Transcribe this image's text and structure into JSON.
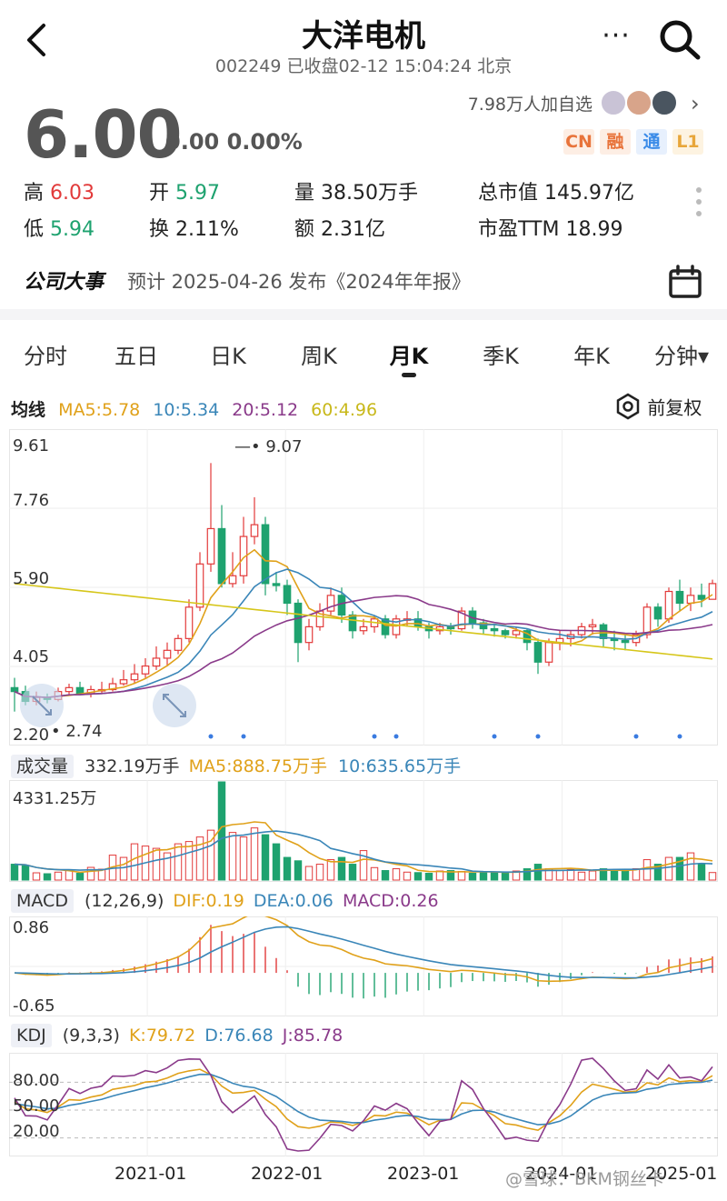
{
  "header": {
    "title": "大洋电机",
    "subtitle": "002249 已收盘02-12 15:04:24 北京"
  },
  "quote": {
    "price": "6.00",
    "change": "0.00 0.00%",
    "watchers": "7.98万人加自选",
    "badges": [
      {
        "label": "CN",
        "color": "#e8733a",
        "bg": "#fdeee4"
      },
      {
        "label": "融",
        "color": "#e8733a",
        "bg": "#fdeee4"
      },
      {
        "label": "通",
        "color": "#3a8be8",
        "bg": "#e7f0fd"
      },
      {
        "label": "L1",
        "color": "#e8a63a",
        "bg": "#fdf3e1"
      }
    ]
  },
  "stats": {
    "high_label": "高",
    "high": "6.03",
    "open_label": "开",
    "open": "5.97",
    "volume": "量 38.50万手",
    "mktcap": "总市值 145.97亿",
    "low_label": "低",
    "low": "5.94",
    "turnover": "换 2.11%",
    "amount": "额 2.31亿",
    "pe": "市盈TTM 18.99"
  },
  "event": {
    "tag": "公司大事",
    "text": "预计 2025-04-26 发布《2024年年报》"
  },
  "tabs": [
    "分时",
    "五日",
    "日K",
    "周K",
    "月K",
    "季K",
    "年K",
    "分钟▾"
  ],
  "active_tab": "月K",
  "ma_legend": {
    "label": "均线",
    "ma5": "MA5:5.78",
    "ma10": "10:5.34",
    "ma20": "20:5.12",
    "ma60": "60:4.96",
    "adjust": "前复权"
  },
  "price_axis": {
    "top": "9.61",
    "mid1": "7.76",
    "mid2": "5.90",
    "mid3": "4.05",
    "bottom": "2.20"
  },
  "annotations": {
    "max": "9.07",
    "min": "2.74"
  },
  "volume_legend": {
    "label": "成交量",
    "current": "332.19万手",
    "ma5": "MA5:888.75万手",
    "ma10": "10:635.65万手",
    "max": "4331.25万"
  },
  "macd_legend": {
    "label": "MACD",
    "params": "(12,26,9)",
    "dif": "DIF:0.19",
    "dea": "DEA:0.06",
    "macd": "MACD:0.26",
    "top": "0.86",
    "bottom": "-0.65"
  },
  "kdj_legend": {
    "label": "KDJ",
    "params": "(9,3,3)",
    "k": "K:79.72",
    "d": "D:76.68",
    "j": "J:85.78",
    "l80": "80.00",
    "l50": "50.00",
    "l20": "20.00"
  },
  "date_axis": [
    "2021-01",
    "2022-01",
    "2023-01",
    "2024-01",
    "2025-01"
  ],
  "watermark": "@雪球：BKM钢丝卡",
  "colors": {
    "up": "#e23a3a",
    "down": "#1ea26f",
    "ma5": "#e0a11a",
    "ma10": "#3a86b8",
    "ma20": "#8a3a8a",
    "ma60": "#d6c61a"
  },
  "chart_data": {
    "type": "candlestick",
    "period": "monthly",
    "ylim": [
      2.2,
      9.61
    ],
    "candles": [
      [
        3.35,
        3.25,
        3.6,
        2.74
      ],
      [
        3.25,
        3.0,
        3.4,
        2.9
      ],
      [
        3.0,
        3.1,
        3.25,
        2.9
      ],
      [
        3.1,
        3.05,
        3.2,
        2.95
      ],
      [
        3.05,
        3.25,
        3.35,
        3.0
      ],
      [
        3.25,
        3.35,
        3.45,
        3.15
      ],
      [
        3.35,
        3.2,
        3.5,
        3.15
      ],
      [
        3.2,
        3.3,
        3.4,
        3.1
      ],
      [
        3.3,
        3.3,
        3.5,
        3.2
      ],
      [
        3.3,
        3.45,
        3.6,
        3.25
      ],
      [
        3.45,
        3.55,
        3.8,
        3.4
      ],
      [
        3.55,
        3.7,
        3.95,
        3.45
      ],
      [
        3.7,
        3.9,
        4.1,
        3.6
      ],
      [
        3.9,
        4.1,
        4.4,
        3.8
      ],
      [
        4.1,
        4.3,
        4.5,
        3.9
      ],
      [
        4.3,
        4.6,
        4.7,
        4.2
      ],
      [
        4.6,
        5.4,
        5.6,
        4.5
      ],
      [
        5.4,
        6.5,
        6.8,
        5.3
      ],
      [
        6.5,
        7.4,
        9.07,
        6.3
      ],
      [
        7.4,
        6.0,
        8.0,
        5.9
      ],
      [
        6.0,
        6.2,
        6.8,
        5.9
      ],
      [
        6.2,
        7.2,
        7.7,
        6.0
      ],
      [
        7.2,
        7.5,
        8.2,
        7.0
      ],
      [
        7.5,
        6.0,
        7.7,
        5.7
      ],
      [
        6.0,
        5.95,
        6.3,
        5.8
      ],
      [
        5.95,
        5.5,
        6.1,
        5.2
      ],
      [
        5.5,
        4.5,
        5.6,
        4.0
      ],
      [
        4.5,
        4.9,
        5.1,
        4.3
      ],
      [
        4.9,
        5.3,
        5.5,
        4.8
      ],
      [
        5.3,
        5.7,
        5.9,
        5.2
      ],
      [
        5.7,
        5.2,
        5.9,
        5.0
      ],
      [
        5.2,
        4.8,
        5.3,
        4.6
      ],
      [
        4.8,
        4.9,
        5.1,
        4.7
      ],
      [
        4.9,
        5.1,
        5.2,
        4.75
      ],
      [
        5.1,
        4.7,
        5.2,
        4.6
      ],
      [
        4.7,
        5.1,
        5.2,
        4.6
      ],
      [
        5.1,
        5.1,
        5.3,
        4.9
      ],
      [
        5.1,
        4.9,
        5.3,
        4.8
      ],
      [
        4.9,
        4.8,
        5.0,
        4.6
      ],
      [
        4.8,
        4.9,
        5.0,
        4.7
      ],
      [
        4.9,
        4.85,
        5.0,
        4.7
      ],
      [
        4.85,
        5.3,
        5.4,
        4.8
      ],
      [
        5.3,
        5.0,
        5.4,
        4.85
      ],
      [
        5.0,
        4.85,
        5.1,
        4.7
      ],
      [
        4.85,
        4.8,
        4.95,
        4.65
      ],
      [
        4.8,
        4.7,
        4.85,
        4.6
      ],
      [
        4.7,
        4.8,
        4.9,
        4.6
      ],
      [
        4.8,
        4.5,
        4.85,
        4.3
      ],
      [
        4.5,
        4.0,
        4.6,
        3.7
      ],
      [
        4.0,
        4.5,
        4.6,
        3.9
      ],
      [
        4.5,
        4.6,
        4.8,
        4.3
      ],
      [
        4.6,
        4.7,
        4.8,
        4.4
      ],
      [
        4.7,
        4.9,
        5.0,
        4.6
      ],
      [
        4.9,
        4.95,
        5.1,
        4.7
      ],
      [
        4.95,
        4.6,
        5.0,
        4.4
      ],
      [
        4.6,
        4.55,
        4.8,
        4.3
      ],
      [
        4.55,
        4.5,
        4.7,
        4.3
      ],
      [
        4.5,
        4.7,
        4.8,
        4.4
      ],
      [
        4.7,
        5.4,
        5.5,
        4.6
      ],
      [
        5.4,
        5.1,
        5.5,
        4.9
      ],
      [
        5.1,
        5.8,
        5.9,
        5.0
      ],
      [
        5.8,
        5.5,
        6.1,
        5.3
      ],
      [
        5.5,
        5.7,
        5.9,
        5.3
      ],
      [
        5.7,
        5.6,
        6.0,
        5.4
      ],
      [
        5.6,
        6.0,
        6.1,
        5.7
      ]
    ],
    "volume_ylim": [
      0,
      4331.25
    ],
    "volumes": [
      700,
      650,
      320,
      280,
      350,
      460,
      300,
      560,
      480,
      1100,
      1000,
      1600,
      1500,
      1400,
      1200,
      1600,
      1700,
      1900,
      2200,
      4331,
      2100,
      1900,
      2300,
      2000,
      1600,
      1000,
      850,
      600,
      700,
      900,
      1000,
      700,
      1300,
      550,
      420,
      500,
      350,
      330,
      300,
      400,
      420,
      380,
      300,
      350,
      330,
      360,
      400,
      500,
      700,
      500,
      420,
      480,
      350,
      400,
      500,
      450,
      420,
      500,
      900,
      700,
      1000,
      1000,
      1200,
      700,
      332
    ],
    "macd": {
      "ylim": [
        -0.65,
        0.86
      ]
    },
    "kdj": {
      "ylim": [
        0,
        100
      ]
    }
  }
}
